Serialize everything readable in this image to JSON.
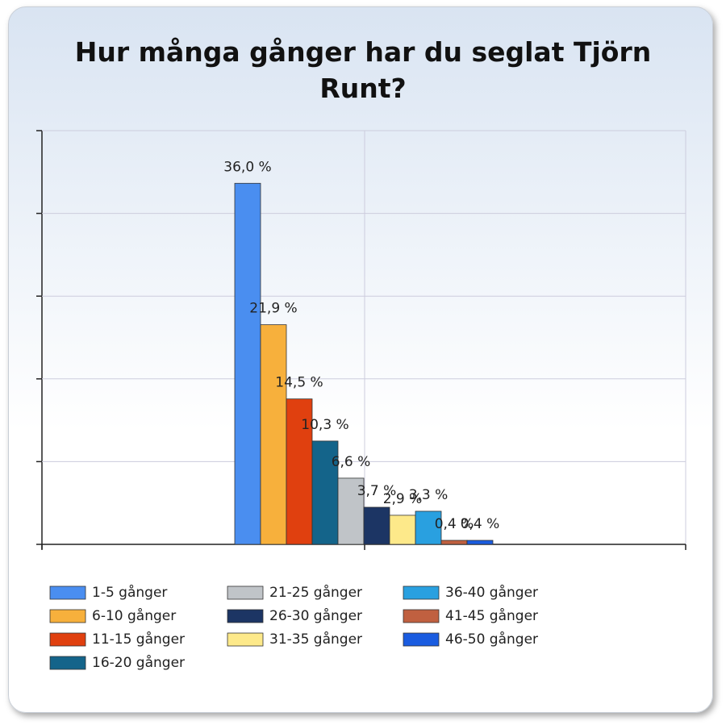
{
  "chart_data": {
    "type": "bar",
    "title": "Hur många gånger har du seglat Tjörn Runt?",
    "categories": [
      null
    ],
    "ylim": [
      0,
      41.25
    ],
    "yticks": [
      0,
      8.25,
      16.5,
      24.75,
      33,
      41.25
    ],
    "grid": true,
    "series": [
      {
        "name": "1-5 gånger",
        "color": "#4a8ef0",
        "values": [
          36.0
        ],
        "value_labels": [
          "36,0 %"
        ]
      },
      {
        "name": "6-10 gånger",
        "color": "#f7b03c",
        "values": [
          21.9
        ],
        "value_labels": [
          "21,9 %"
        ]
      },
      {
        "name": "11-15 gånger",
        "color": "#e0400f",
        "values": [
          14.5
        ],
        "value_labels": [
          "14,5 %"
        ]
      },
      {
        "name": "16-20 gånger",
        "color": "#14648a",
        "values": [
          10.3
        ],
        "value_labels": [
          "10,3 %"
        ]
      },
      {
        "name": "21-25 gånger",
        "color": "#c0c4c8",
        "values": [
          6.6
        ],
        "value_labels": [
          "6,6 %"
        ]
      },
      {
        "name": "26-30 gånger",
        "color": "#1c3564",
        "values": [
          3.7
        ],
        "value_labels": [
          "3,7 %"
        ]
      },
      {
        "name": "31-35 gånger",
        "color": "#fde98a",
        "values": [
          2.9
        ],
        "value_labels": [
          "2,9 %"
        ]
      },
      {
        "name": "36-40 gånger",
        "color": "#29a0e0",
        "values": [
          3.3
        ],
        "value_labels": [
          "3,3 %"
        ]
      },
      {
        "name": "41-45 gånger",
        "color": "#c06040",
        "values": [
          0.4
        ],
        "value_labels": [
          "0,4 %"
        ]
      },
      {
        "name": "46-50 gånger",
        "color": "#1a5ce0",
        "values": [
          0.4
        ],
        "value_labels": [
          "0,4 %"
        ]
      }
    ]
  }
}
